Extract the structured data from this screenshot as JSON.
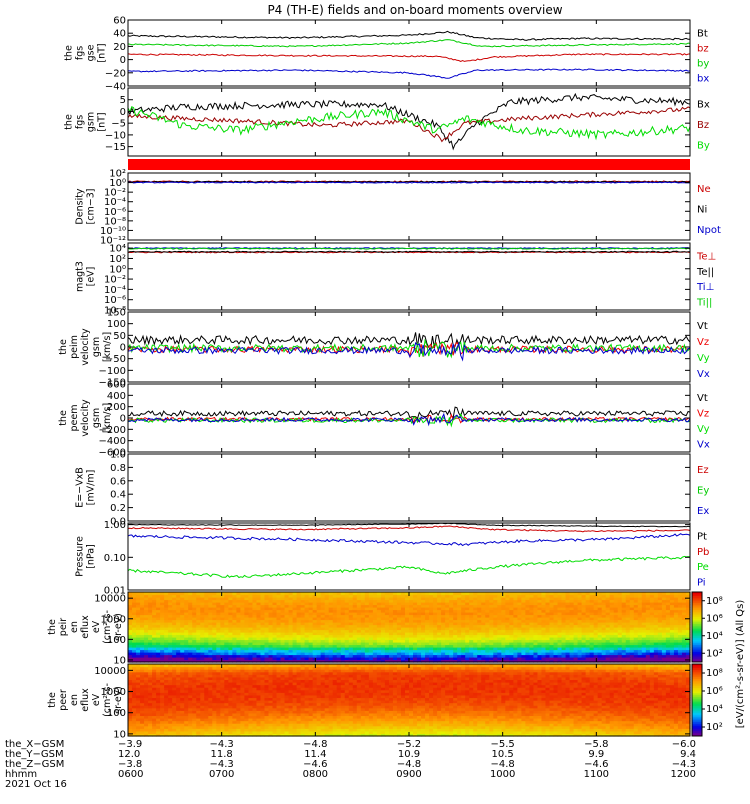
{
  "title": "P4 (TH-E) fields and on-board moments overview",
  "chart_data": [
    {
      "type": "line",
      "ylabel": [
        "the",
        "fgs",
        "gse",
        "[nT]"
      ],
      "ylim": [
        -40,
        60
      ],
      "yticks": [
        {
          "v": 60,
          "t": "60"
        },
        {
          "v": 40,
          "t": "40"
        },
        {
          "v": 20,
          "t": "20"
        },
        {
          "v": 0,
          "t": "0"
        },
        {
          "v": -20,
          "t": "−20"
        },
        {
          "v": -40,
          "t": "−40"
        }
      ],
      "series": [
        {
          "name": "Bt",
          "color": "#000000",
          "mode": "trend",
          "anchors": [
            [
              0,
              36
            ],
            [
              0.3,
              33
            ],
            [
              0.5,
              37
            ],
            [
              0.57,
              42
            ],
            [
              0.62,
              33
            ],
            [
              0.7,
              30
            ],
            [
              0.8,
              32
            ],
            [
              1,
              31
            ]
          ],
          "noise": 1.2
        },
        {
          "name": "bz",
          "color": "#cc0000",
          "mode": "trend",
          "anchors": [
            [
              0,
              8
            ],
            [
              0.3,
              6
            ],
            [
              0.55,
              5
            ],
            [
              0.6,
              -3
            ],
            [
              0.65,
              4
            ],
            [
              0.8,
              8
            ],
            [
              1,
              8
            ]
          ],
          "noise": 1.0
        },
        {
          "name": "by",
          "color": "#00cc00",
          "mode": "trend",
          "anchors": [
            [
              0,
              23
            ],
            [
              0.3,
              20
            ],
            [
              0.5,
              25
            ],
            [
              0.57,
              30
            ],
            [
              0.63,
              20
            ],
            [
              0.8,
              22
            ],
            [
              1,
              24
            ]
          ],
          "noise": 1.0
        },
        {
          "name": "bx",
          "color": "#0000cc",
          "mode": "trend",
          "anchors": [
            [
              0,
              -18
            ],
            [
              0.3,
              -16
            ],
            [
              0.5,
              -20
            ],
            [
              0.57,
              -28
            ],
            [
              0.62,
              -16
            ],
            [
              0.8,
              -15
            ],
            [
              1,
              -17
            ]
          ],
          "noise": 1.0
        }
      ]
    },
    {
      "type": "line",
      "ylabel": [
        "the",
        "fgs",
        "gsm",
        "[nT]"
      ],
      "ylim": [
        -19,
        10
      ],
      "yticks": [
        {
          "v": 5,
          "t": "5"
        },
        {
          "v": 0,
          "t": "0"
        },
        {
          "v": -5,
          "t": "−5"
        },
        {
          "v": -10,
          "t": "−10"
        },
        {
          "v": -15,
          "t": "−15"
        }
      ],
      "series": [
        {
          "name": "Bx",
          "color": "#000000",
          "mode": "trend",
          "anchors": [
            [
              0,
              0
            ],
            [
              0.1,
              2
            ],
            [
              0.3,
              3
            ],
            [
              0.45,
              3
            ],
            [
              0.55,
              -6
            ],
            [
              0.58,
              -15
            ],
            [
              0.62,
              -5
            ],
            [
              0.68,
              4
            ],
            [
              0.8,
              6
            ],
            [
              1,
              4
            ]
          ],
          "noise": 1.5
        },
        {
          "name": "Bz",
          "color": "#990000",
          "mode": "trend",
          "anchors": [
            [
              0,
              -2
            ],
            [
              0.2,
              -4
            ],
            [
              0.35,
              -6
            ],
            [
              0.5,
              -4
            ],
            [
              0.56,
              -12
            ],
            [
              0.6,
              -5
            ],
            [
              0.7,
              -3
            ],
            [
              0.85,
              -1
            ],
            [
              1,
              1
            ]
          ],
          "noise": 1.0
        },
        {
          "name": "By",
          "color": "#00dd00",
          "mode": "trend",
          "anchors": [
            [
              0,
              1
            ],
            [
              0.1,
              -6
            ],
            [
              0.2,
              -8
            ],
            [
              0.3,
              -4
            ],
            [
              0.45,
              0
            ],
            [
              0.55,
              -8
            ],
            [
              0.6,
              -3
            ],
            [
              0.7,
              -8
            ],
            [
              0.85,
              -10
            ],
            [
              1,
              -7
            ]
          ],
          "noise": 1.8
        }
      ]
    },
    {
      "type": "line",
      "ylabel": [
        "Density",
        "[cm−3]"
      ],
      "ylog": true,
      "ylim": [
        -12,
        2
      ],
      "yticks": [
        {
          "v": 2,
          "t": "10²"
        },
        {
          "v": 0,
          "t": "10⁰"
        },
        {
          "v": -2,
          "t": "10⁻²"
        },
        {
          "v": -4,
          "t": "10⁻⁴"
        },
        {
          "v": -6,
          "t": "10⁻⁶"
        },
        {
          "v": -8,
          "t": "10⁻⁸"
        },
        {
          "v": -10,
          "t": "10⁻¹⁰"
        },
        {
          "v": -12,
          "t": "10⁻¹²"
        }
      ],
      "series": [
        {
          "name": "Ne",
          "color": "#cc0000",
          "mode": "flat",
          "level": 0.2,
          "noise": 0.15
        },
        {
          "name": "Ni",
          "color": "#000000",
          "mode": "flat",
          "level": 0.15,
          "noise": 0.1
        },
        {
          "name": "Npot",
          "color": "#0000cc",
          "mode": "flat",
          "level": 0.0,
          "noise": 0.1
        }
      ]
    },
    {
      "type": "line",
      "ylabel": [
        "magt3",
        "[eV]"
      ],
      "ylog": true,
      "ylim": [
        -8,
        5
      ],
      "yticks": [
        {
          "v": 4,
          "t": "10⁴"
        },
        {
          "v": 2,
          "t": "10²"
        },
        {
          "v": 0,
          "t": "10⁰"
        },
        {
          "v": -2,
          "t": "10⁻²"
        },
        {
          "v": -4,
          "t": "10⁻⁴"
        },
        {
          "v": -6,
          "t": "10⁻⁶"
        },
        {
          "v": -8,
          "t": "10⁻⁸"
        }
      ],
      "series": [
        {
          "name": "Te⊥",
          "color": "#cc0000",
          "mode": "flat",
          "level": 3.2,
          "noise": 0.1
        },
        {
          "name": "Te||",
          "color": "#000000",
          "mode": "flat",
          "level": 3.3,
          "noise": 0.1
        },
        {
          "name": "Ti⊥",
          "color": "#0000cc",
          "mode": "flat",
          "level": 4.0,
          "noise": 0.1
        },
        {
          "name": "Ti||",
          "color": "#00cc00",
          "mode": "flat",
          "level": 3.9,
          "noise": 0.1
        }
      ]
    },
    {
      "type": "line",
      "ylabel": [
        "the",
        "peim",
        "velocity",
        "gsm",
        "[km/s]"
      ],
      "ylim": [
        -150,
        150
      ],
      "yticks": [
        {
          "v": 150,
          "t": "150"
        },
        {
          "v": 100,
          "t": "100"
        },
        {
          "v": 50,
          "t": "50"
        },
        {
          "v": 0,
          "t": "0"
        },
        {
          "v": -50,
          "t": "−50"
        },
        {
          "v": -100,
          "t": "−100"
        },
        {
          "v": -150,
          "t": "−150"
        }
      ],
      "series": [
        {
          "name": "Vt",
          "color": "#000000",
          "mode": "noise",
          "level": 30,
          "noise": 18
        },
        {
          "name": "Vz",
          "color": "#ee0000",
          "mode": "noise",
          "level": -10,
          "noise": 14
        },
        {
          "name": "Vy",
          "color": "#00dd00",
          "mode": "noise",
          "level": -5,
          "noise": 16
        },
        {
          "name": "Vx",
          "color": "#0000cc",
          "mode": "noise",
          "level": -15,
          "noise": 14
        }
      ]
    },
    {
      "type": "line",
      "ylabel": [
        "the",
        "peem",
        "velocity",
        "gsm",
        "[km/s]"
      ],
      "ylim": [
        -600,
        600
      ],
      "yticks": [
        {
          "v": 600,
          "t": "600"
        },
        {
          "v": 400,
          "t": "400"
        },
        {
          "v": 200,
          "t": "200"
        },
        {
          "v": 0,
          "t": "0"
        },
        {
          "v": -200,
          "t": "−200"
        },
        {
          "v": -400,
          "t": "−400"
        },
        {
          "v": -600,
          "t": "−600"
        }
      ],
      "series": [
        {
          "name": "Vt",
          "color": "#000000",
          "mode": "noise",
          "level": 80,
          "noise": 45
        },
        {
          "name": "Vz",
          "color": "#ee0000",
          "mode": "noise",
          "level": -20,
          "noise": 30
        },
        {
          "name": "Vy",
          "color": "#00dd00",
          "mode": "noise",
          "level": -40,
          "noise": 40
        },
        {
          "name": "Vx",
          "color": "#0000cc",
          "mode": "noise",
          "level": -30,
          "noise": 35
        }
      ]
    },
    {
      "type": "line",
      "ylabel": [
        "E=−VxB",
        "[mV/m]"
      ],
      "ylim": [
        0,
        1
      ],
      "yticks": [
        {
          "v": 1.0,
          "t": "1.0"
        },
        {
          "v": 0.8,
          "t": "0.8"
        },
        {
          "v": 0.6,
          "t": "0.6"
        },
        {
          "v": 0.4,
          "t": "0.4"
        },
        {
          "v": 0.2,
          "t": "0.2"
        },
        {
          "v": 0.0,
          "t": "0.0"
        }
      ],
      "series": [
        {
          "name": "Ez",
          "color": "#cc0000",
          "mode": "none"
        },
        {
          "name": "Ey",
          "color": "#00cc00",
          "mode": "none"
        },
        {
          "name": "Ex",
          "color": "#0000cc",
          "mode": "none"
        }
      ]
    },
    {
      "type": "line",
      "ylabel": [
        "Pressure",
        "[nPa]"
      ],
      "ylog": true,
      "ylim": [
        -2,
        0.05
      ],
      "yticks": [
        {
          "v": 0,
          "t": "1.00"
        },
        {
          "v": -1,
          "t": "0.10"
        },
        {
          "v": -2,
          "t": "0.01"
        }
      ],
      "series": [
        {
          "name": "Pt",
          "color": "#000000",
          "mode": "trend",
          "anchors": [
            [
              0,
              0.0
            ],
            [
              0.3,
              -0.02
            ],
            [
              0.5,
              0.02
            ],
            [
              0.57,
              0.04
            ],
            [
              0.65,
              -0.02
            ],
            [
              0.85,
              -0.05
            ],
            [
              1,
              -0.06
            ]
          ],
          "noise": 0.01
        },
        {
          "name": "Pb",
          "color": "#cc0000",
          "mode": "trend",
          "anchors": [
            [
              0,
              -0.1
            ],
            [
              0.3,
              -0.15
            ],
            [
              0.5,
              -0.1
            ],
            [
              0.57,
              -0.05
            ],
            [
              0.65,
              -0.15
            ],
            [
              0.8,
              -0.2
            ],
            [
              1,
              -0.18
            ]
          ],
          "noise": 0.02
        },
        {
          "name": "Pe",
          "color": "#00dd00",
          "mode": "trend",
          "anchors": [
            [
              0,
              -1.4
            ],
            [
              0.2,
              -1.6
            ],
            [
              0.3,
              -1.5
            ],
            [
              0.5,
              -1.3
            ],
            [
              0.56,
              -1.5
            ],
            [
              0.65,
              -1.3
            ],
            [
              0.8,
              -1.1
            ],
            [
              1,
              -1.0
            ]
          ],
          "noise": 0.04
        },
        {
          "name": "Pi",
          "color": "#0000cc",
          "mode": "trend",
          "anchors": [
            [
              0,
              -0.35
            ],
            [
              0.3,
              -0.45
            ],
            [
              0.5,
              -0.55
            ],
            [
              0.6,
              -0.6
            ],
            [
              0.7,
              -0.5
            ],
            [
              0.85,
              -0.45
            ],
            [
              1,
              -0.3
            ]
          ],
          "noise": 0.04
        }
      ]
    },
    {
      "type": "heatmap",
      "ylabel": [
        "the",
        "peir",
        "en",
        "eflux",
        "eV",
        "(cm²-s-",
        "sr-eV)"
      ],
      "ylog": true,
      "ylim": [
        0.9,
        4.3
      ],
      "yticks": [
        {
          "v": 4,
          "t": "10000"
        },
        {
          "v": 3,
          "t": "1000"
        },
        {
          "v": 2,
          "t": "100"
        },
        {
          "v": 1,
          "t": "10"
        }
      ],
      "zlog_range": [
        1,
        9
      ],
      "zticks": [
        {
          "v": 2,
          "t": "10²"
        },
        {
          "v": 4,
          "t": "10⁴"
        },
        {
          "v": 6,
          "t": "10⁶"
        },
        {
          "v": 8,
          "t": "10⁸"
        }
      ],
      "profile": "ion"
    },
    {
      "type": "heatmap",
      "ylabel": [
        "the",
        "peer",
        "en",
        "eflux",
        "eV",
        "(cm²-s-",
        "sr-eV)"
      ],
      "ylog": true,
      "ylim": [
        0.9,
        4.3
      ],
      "yticks": [
        {
          "v": 4,
          "t": "10000"
        },
        {
          "v": 3,
          "t": "1000"
        },
        {
          "v": 2,
          "t": "100"
        },
        {
          "v": 1,
          "t": "10"
        }
      ],
      "zlog_range": [
        1,
        9
      ],
      "zticks": [
        {
          "v": 2,
          "t": "10²"
        },
        {
          "v": 4,
          "t": "10⁴"
        },
        {
          "v": 6,
          "t": "10⁶"
        },
        {
          "v": 8,
          "t": "10⁸"
        }
      ],
      "profile": "electron"
    }
  ],
  "colorbar_label": "[eV/(cm²-s-sr-eV)] (All Qs)",
  "xaxis": {
    "row_labels": [
      "the_X−GSM",
      "the_Y−GSM",
      "the_Z−GSM",
      "hhmm",
      "2021 Oct 16"
    ],
    "x": [
      "0600",
      "0700",
      "0800",
      "0900",
      "1000",
      "1100",
      "1200"
    ],
    "X_GSM": [
      "−3.9",
      "−4.3",
      "−4.8",
      "−5.2",
      "−5.5",
      "−5.8",
      "−6.0"
    ],
    "Y_GSM": [
      "12.0",
      "11.8",
      "11.4",
      "10.9",
      "10.5",
      "9.9",
      "9.4"
    ],
    "Z_GSM": [
      "−3.8",
      "−4.3",
      "−4.6",
      "−4.8",
      "−4.8",
      "−4.6",
      "−4.3"
    ]
  }
}
